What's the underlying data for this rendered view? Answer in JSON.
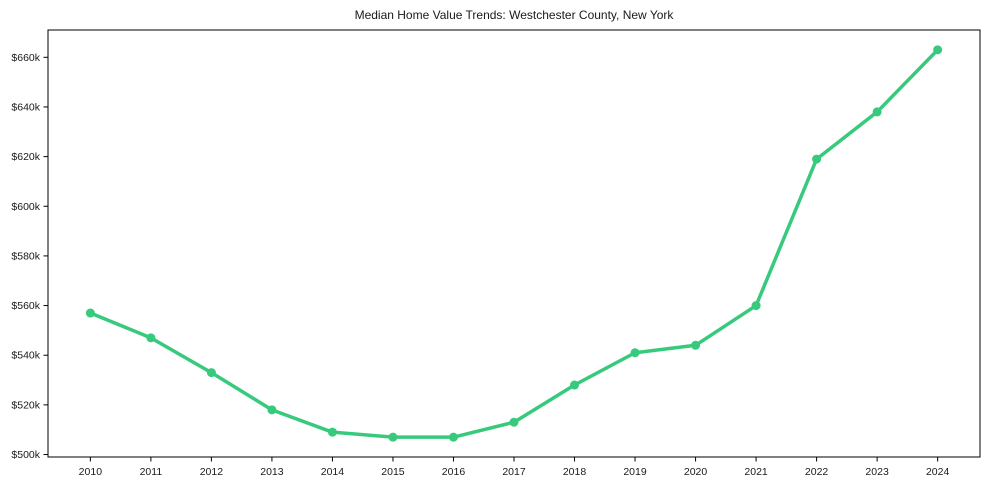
{
  "title": "Median Home Value Trends: Westchester County, New York",
  "chart_data": {
    "type": "line",
    "title": "Median Home Value Trends: Westchester County, New York",
    "xlabel": "",
    "ylabel": "",
    "grid": false,
    "legend": "none",
    "marker": "circle",
    "xlim": [
      2009.3,
      2024.7
    ],
    "ylim": [
      499000,
      671000
    ],
    "series": [
      {
        "name": "Median Home Value",
        "color": "#38ca7c",
        "x": [
          2010,
          2011,
          2012,
          2013,
          2014,
          2015,
          2016,
          2017,
          2018,
          2019,
          2020,
          2021,
          2022,
          2023,
          2024
        ],
        "values": [
          557000,
          547000,
          533000,
          518000,
          509000,
          507000,
          507000,
          513000,
          528000,
          541000,
          544000,
          560000,
          619000,
          638000,
          663000
        ]
      }
    ],
    "xticks": [
      {
        "value": 2010,
        "label": "2010"
      },
      {
        "value": 2011,
        "label": "2011"
      },
      {
        "value": 2012,
        "label": "2012"
      },
      {
        "value": 2013,
        "label": "2013"
      },
      {
        "value": 2014,
        "label": "2014"
      },
      {
        "value": 2015,
        "label": "2015"
      },
      {
        "value": 2016,
        "label": "2016"
      },
      {
        "value": 2017,
        "label": "2017"
      },
      {
        "value": 2018,
        "label": "2018"
      },
      {
        "value": 2019,
        "label": "2019"
      },
      {
        "value": 2020,
        "label": "2020"
      },
      {
        "value": 2021,
        "label": "2021"
      },
      {
        "value": 2022,
        "label": "2022"
      },
      {
        "value": 2023,
        "label": "2023"
      },
      {
        "value": 2024,
        "label": "2024"
      }
    ],
    "yticks": [
      {
        "value": 500000,
        "label": "$500k"
      },
      {
        "value": 520000,
        "label": "$520k"
      },
      {
        "value": 540000,
        "label": "$540k"
      },
      {
        "value": 560000,
        "label": "$560k"
      },
      {
        "value": 580000,
        "label": "$580k"
      },
      {
        "value": 600000,
        "label": "$600k"
      },
      {
        "value": 620000,
        "label": "$620k"
      },
      {
        "value": 640000,
        "label": "$640k"
      },
      {
        "value": 660000,
        "label": "$660k"
      }
    ]
  },
  "style": {
    "background": "#ffffff",
    "axis_color": "#000000",
    "text_color": "#1a1a1a",
    "line_color": "#38ca7c"
  }
}
